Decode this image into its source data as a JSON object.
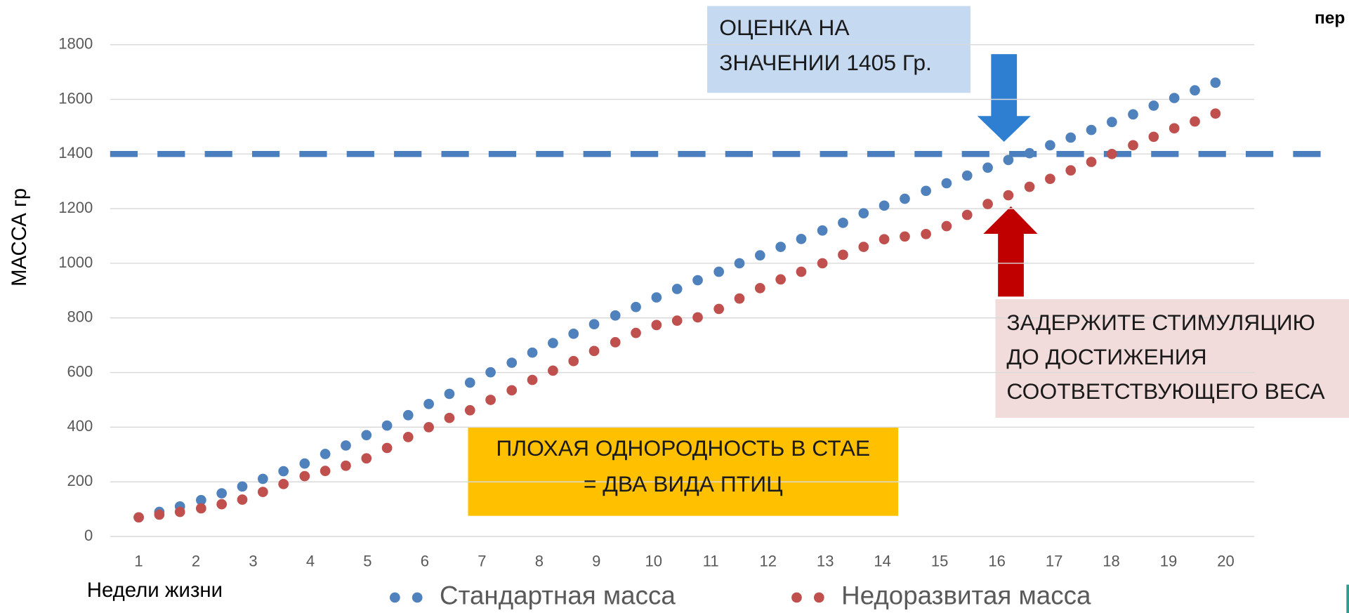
{
  "chart_data": {
    "type": "scatter",
    "y_label": "МАССА гр",
    "x_label": "Недели жизни",
    "xlim": [
      0.5,
      20.5
    ],
    "xticks": [
      1,
      2,
      3,
      4,
      5,
      6,
      7,
      8,
      9,
      10,
      11,
      12,
      13,
      14,
      15,
      16,
      17,
      18,
      19,
      20
    ],
    "ylim": [
      0,
      1800
    ],
    "yticks": [
      0,
      200,
      400,
      600,
      800,
      1000,
      1200,
      1400,
      1600,
      1800
    ],
    "grid": true,
    "x": [
      1.0,
      1.36,
      1.72,
      2.09,
      2.45,
      2.81,
      3.17,
      3.53,
      3.9,
      4.26,
      4.62,
      4.98,
      5.34,
      5.71,
      6.07,
      6.43,
      6.79,
      7.15,
      7.52,
      7.88,
      8.24,
      8.6,
      8.96,
      9.33,
      9.69,
      10.05,
      10.41,
      10.77,
      11.14,
      11.5,
      11.86,
      12.22,
      12.58,
      12.95,
      13.31,
      13.67,
      14.03,
      14.39,
      14.76,
      15.12,
      15.48,
      15.84,
      16.2,
      16.57,
      16.93,
      17.29,
      17.65,
      18.01,
      18.38,
      18.74,
      19.1,
      19.46,
      19.82
    ],
    "series": [
      {
        "name": "Стандартная масса",
        "color": "#4f81bd",
        "values": [
          70,
          90,
          110,
          133,
          158,
          183,
          211,
          239,
          267,
          302,
          333,
          371,
          406,
          444,
          485,
          522,
          563,
          601,
          636,
          673,
          708,
          742,
          777,
          809,
          840,
          875,
          906,
          938,
          969,
          1000,
          1029,
          1060,
          1089,
          1120,
          1148,
          1183,
          1211,
          1236,
          1265,
          1293,
          1321,
          1350,
          1378,
          1403,
          1432,
          1460,
          1488,
          1517,
          1545,
          1577,
          1605,
          1633,
          1661
        ]
      },
      {
        "name": "Недоразвитая масса",
        "color": "#c0504d",
        "values": [
          70,
          80,
          90,
          103,
          118,
          135,
          163,
          192,
          221,
          240,
          259,
          286,
          324,
          364,
          400,
          434,
          462,
          500,
          535,
          573,
          607,
          642,
          679,
          711,
          745,
          774,
          790,
          802,
          833,
          871,
          909,
          941,
          969,
          1000,
          1031,
          1060,
          1088,
          1098,
          1107,
          1136,
          1177,
          1217,
          1249,
          1280,
          1309,
          1340,
          1371,
          1400,
          1432,
          1463,
          1494,
          1519,
          1548
        ]
      }
    ],
    "reference_line": {
      "value": 1400,
      "color": "#4a7ebf"
    },
    "annotations": [
      {
        "lines": [
          "ОЦЕНКА НА",
          "ЗНАЧЕНИИ 1405 Гр."
        ]
      },
      {
        "lines": [
          "ЗАДЕРЖИТЕ СТИМУЛЯЦИЮ",
          "ДО ДОСТИЖЕНИЯ",
          "СООТВЕТСТВУЮЩЕГО ВЕСА"
        ]
      },
      {
        "lines": [
          "ПЛОХАЯ ОДНОРОДНОСТЬ В СТАЕ",
          "= ДВА ВИДА ПТИЦ"
        ]
      }
    ],
    "corner_text": "пер"
  }
}
